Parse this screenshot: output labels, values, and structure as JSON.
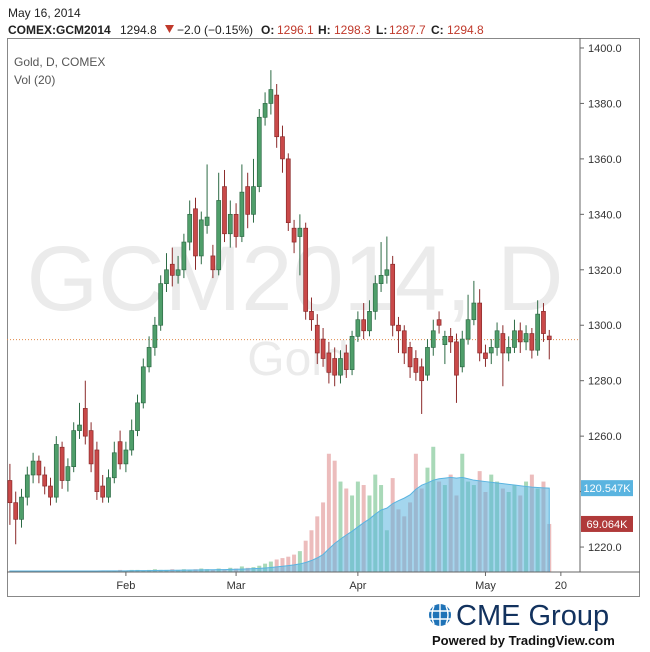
{
  "header": {
    "date": "May 16, 2014",
    "symbol": "COMEX:GCM2014",
    "last": "1294.8",
    "change": "−2.0 (−0.15%)",
    "o_label": "O:",
    "o": "1296.1",
    "h_label": "H:",
    "h": "1298.3",
    "l_label": "L:",
    "l": "1287.7",
    "c_label": "C:",
    "c": "1294.8"
  },
  "footer": {
    "brand": "CME Group",
    "powered": "Powered by TradingView.com"
  },
  "chart_data": {
    "type": "candlestick",
    "title": "Gold, D, COMEX",
    "volume_title": "Vol (20)",
    "watermark": "GCM2014, D",
    "watermark_sub": "Gold",
    "open": [
      1244,
      1236,
      1230,
      1238,
      1246,
      1251,
      1246,
      1242,
      1238,
      1256,
      1244,
      1249,
      1262,
      1270,
      1262,
      1255,
      1242,
      1238,
      1245,
      1258,
      1250,
      1255,
      1262,
      1272,
      1285,
      1292,
      1300,
      1315,
      1322,
      1318,
      1320,
      1330,
      1342,
      1325,
      1336,
      1325,
      1320,
      1350,
      1333,
      1340,
      1332,
      1350,
      1340,
      1350,
      1375,
      1380,
      1383,
      1368,
      1360,
      1335,
      1332,
      1335,
      1305,
      1300,
      1295,
      1290,
      1288,
      1282,
      1290,
      1284,
      1296,
      1302,
      1298,
      1305,
      1315,
      1318,
      1322,
      1300,
      1298,
      1292,
      1288,
      1285,
      1282,
      1292,
      1302,
      1293,
      1296,
      1294,
      1285,
      1295,
      1302,
      1308,
      1290,
      1290,
      1292,
      1297,
      1290,
      1292,
      1298,
      1294,
      1297,
      1291,
      1305,
      1296.1
    ],
    "high": [
      1250,
      1240,
      1241,
      1249,
      1254,
      1253,
      1249,
      1245,
      1260,
      1258,
      1252,
      1265,
      1272,
      1280,
      1265,
      1258,
      1246,
      1248,
      1258,
      1262,
      1258,
      1266,
      1275,
      1288,
      1296,
      1303,
      1318,
      1326,
      1328,
      1325,
      1333,
      1345,
      1346,
      1341,
      1358,
      1329,
      1355,
      1356,
      1345,
      1344,
      1358,
      1355,
      1360,
      1378,
      1384,
      1392,
      1387,
      1372,
      1362,
      1338,
      1340,
      1337,
      1310,
      1304,
      1299,
      1294,
      1292,
      1291,
      1293,
      1298,
      1305,
      1308,
      1309,
      1318,
      1330,
      1332,
      1325,
      1303,
      1300,
      1294,
      1291,
      1288,
      1295,
      1302,
      1305,
      1298,
      1299,
      1297,
      1298,
      1311,
      1316,
      1313,
      1293,
      1295,
      1301,
      1300,
      1296,
      1302,
      1301,
      1300,
      1299,
      1309,
      1308,
      1298.3
    ],
    "low": [
      1228,
      1221,
      1227,
      1235,
      1243,
      1243,
      1239,
      1235,
      1236,
      1241,
      1240,
      1247,
      1259,
      1257,
      1247,
      1237,
      1236,
      1236,
      1243,
      1248,
      1247,
      1253,
      1260,
      1270,
      1283,
      1289,
      1298,
      1312,
      1314,
      1315,
      1317,
      1327,
      1320,
      1322,
      1333,
      1317,
      1318,
      1330,
      1328,
      1328,
      1330,
      1335,
      1337,
      1348,
      1372,
      1376,
      1364,
      1355,
      1334,
      1326,
      1318,
      1302,
      1298,
      1286,
      1285,
      1279,
      1278,
      1279,
      1281,
      1282,
      1294,
      1295,
      1296,
      1302,
      1312,
      1315,
      1296,
      1290,
      1286,
      1281,
      1280,
      1268,
      1280,
      1289,
      1297,
      1286,
      1290,
      1272,
      1283,
      1293,
      1300,
      1287,
      1285,
      1286,
      1289,
      1278,
      1287,
      1290,
      1290,
      1291,
      1288,
      1289,
      1294,
      1287.7
    ],
    "close": [
      1236,
      1230,
      1238,
      1246,
      1251,
      1246,
      1242,
      1238,
      1257,
      1244,
      1249,
      1262,
      1264,
      1260,
      1250,
      1240,
      1238,
      1245,
      1254,
      1250,
      1255,
      1262,
      1272,
      1285,
      1292,
      1300,
      1315,
      1320,
      1318,
      1320,
      1330,
      1340,
      1325,
      1338,
      1339,
      1320,
      1345,
      1333,
      1340,
      1332,
      1348,
      1340,
      1350,
      1375,
      1380,
      1385,
      1368,
      1360,
      1337,
      1330,
      1335,
      1305,
      1302,
      1290,
      1288,
      1283,
      1282,
      1288,
      1284,
      1296,
      1302,
      1298,
      1305,
      1315,
      1318,
      1320,
      1300,
      1298,
      1290,
      1285,
      1283,
      1280,
      1292,
      1298,
      1300,
      1296,
      1294,
      1282,
      1295,
      1302,
      1308,
      1290,
      1288,
      1292,
      1298,
      1290,
      1292,
      1298,
      1294,
      1297,
      1291,
      1304,
      1297,
      1294.8
    ],
    "volume": [
      1,
      1,
      1,
      2,
      1,
      1,
      2,
      1,
      2,
      1,
      1,
      2,
      2,
      1,
      2,
      1,
      2,
      2,
      2,
      3,
      2,
      3,
      3,
      2,
      3,
      4,
      3,
      3,
      4,
      3,
      4,
      3,
      4,
      5,
      4,
      3,
      5,
      4,
      6,
      5,
      8,
      6,
      7,
      9,
      12,
      15,
      18,
      20,
      22,
      25,
      30,
      45,
      60,
      80,
      100,
      170,
      160,
      130,
      120,
      110,
      130,
      125,
      110,
      140,
      125,
      60,
      135,
      90,
      80,
      100,
      170,
      120,
      150,
      180,
      130,
      125,
      140,
      110,
      170,
      130,
      125,
      145,
      115,
      140,
      130,
      120,
      115,
      125,
      110,
      130,
      140,
      120,
      130,
      69.064
    ],
    "volume_ma": [
      1.4,
      1.4,
      1.4,
      1.4,
      1.4,
      1.4,
      1.4,
      1.4,
      1.5,
      1.5,
      1.5,
      1.5,
      1.5,
      1.5,
      1.5,
      1.5,
      1.6,
      1.6,
      1.6,
      1.6,
      1.7,
      1.8,
      1.9,
      1.9,
      2,
      2.2,
      2.3,
      2.4,
      2.5,
      2.6,
      2.7,
      2.8,
      2.9,
      3.1,
      3.2,
      3.3,
      3.4,
      3.5,
      3.7,
      3.9,
      4.2,
      4.5,
      4.8,
      5.2,
      5.8,
      6.5,
      7.3,
      8.2,
      9.2,
      10.3,
      11.6,
      13.7,
      16.5,
      20.3,
      25.1,
      33.2,
      41,
      47.3,
      53.2,
      58.5,
      64.8,
      70.9,
      76.3,
      83.1,
      89.1,
      91.8,
      98.3,
      102.5,
      106.2,
      110.9,
      119,
      124.8,
      128,
      132,
      134,
      135,
      136,
      135,
      136,
      134,
      132,
      131,
      130,
      129,
      128,
      127,
      126,
      125,
      124,
      123,
      122,
      121.5,
      121,
      120.547
    ],
    "volume_ma_last_label": "120.547K",
    "volume_last_label": "69.064K",
    "up_color": "#4f9e6a",
    "up_edge": "#2d6b45",
    "down_color": "#c94949",
    "down_edge": "#8b2a2a",
    "volume_up_color": "#a9d9b8",
    "volume_down_color": "#ecbcbc",
    "ma_color": "#5ab4e0",
    "last_line_color": "#e08a4a",
    "ylim": [
      1211,
      1403.6
    ],
    "yticks": [
      {
        "value": 1220,
        "label": "1220.0"
      },
      {
        "value": 1240,
        "label": "1240.0"
      },
      {
        "value": 1260,
        "label": "1260.0"
      },
      {
        "value": 1280,
        "label": "1280.0"
      },
      {
        "value": 1300,
        "label": "1300.0"
      },
      {
        "value": 1320,
        "label": "1320.0"
      },
      {
        "value": 1340,
        "label": "1340.0"
      },
      {
        "value": 1360,
        "label": "1360.0"
      },
      {
        "value": 1380,
        "label": "1380.0"
      },
      {
        "value": 1400,
        "label": "1400.0"
      }
    ],
    "vlim": [
      0,
      230
    ],
    "xlim": [
      -0.5,
      98.3
    ],
    "xticks": [
      {
        "value": 20,
        "label": "Feb"
      },
      {
        "value": 39,
        "label": "Mar"
      },
      {
        "value": 60,
        "label": "Apr"
      },
      {
        "value": 82,
        "label": "May"
      },
      {
        "value": 95,
        "label": "20"
      }
    ]
  }
}
